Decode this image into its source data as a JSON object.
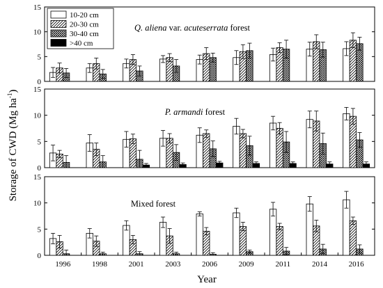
{
  "chart_data": {
    "type": "bar",
    "xlabel": "Year",
    "ylabel": "Storage of CWD (Mg ha",
    "ylabel_sup": "-1",
    "ylabel_close": ")",
    "categories": [
      "1996",
      "1998",
      "2001",
      "2003",
      "2006",
      "2009",
      "2011",
      "2014",
      "2016"
    ],
    "ylim": [
      0,
      15
    ],
    "yticks": [
      "0",
      "5",
      "10",
      "15"
    ],
    "grid": false,
    "legend": {
      "placement": "top-left",
      "entries": [
        {
          "label": "10-20 cm",
          "pattern": "blank"
        },
        {
          "label": "20-30 cm",
          "pattern": "diagonal"
        },
        {
          "label": "30-40 cm",
          "pattern": "crosshatch"
        },
        {
          "label": ">40 cm",
          "pattern": "solid"
        }
      ]
    },
    "panels": [
      {
        "title_parts": [
          {
            "text": "Q. aliena",
            "italic": true
          },
          {
            "text": " var. ",
            "italic": false
          },
          {
            "text": "acuteserrata",
            "italic": true
          },
          {
            "text": " forest",
            "italic": false
          }
        ],
        "series": [
          {
            "name": "10-20 cm",
            "values": [
              1.8,
              2.7,
              3.6,
              4.5,
              4.4,
              4.8,
              5.4,
              6.5,
              6.6
            ],
            "errors": [
              1.0,
              0.9,
              0.9,
              0.7,
              0.9,
              1.4,
              1.3,
              1.4,
              1.4
            ]
          },
          {
            "name": "20-30 cm",
            "values": [
              2.7,
              3.6,
              4.4,
              4.8,
              5.6,
              6.0,
              6.8,
              8.0,
              8.3
            ],
            "errors": [
              1.0,
              1.1,
              1.0,
              0.8,
              1.2,
              1.4,
              1.0,
              1.4,
              1.5
            ]
          },
          {
            "name": "30-40 cm",
            "values": [
              1.7,
              1.5,
              2.1,
              3.1,
              4.8,
              6.2,
              6.5,
              6.4,
              7.6
            ],
            "errors": [
              0.9,
              0.9,
              1.0,
              1.3,
              0.9,
              1.5,
              1.8,
              1.5,
              1.3
            ]
          },
          {
            "name": ">40 cm",
            "values": [
              0,
              0,
              0,
              0,
              0,
              0,
              0,
              0,
              0
            ],
            "errors": [
              0,
              0,
              0,
              0,
              0,
              0,
              0,
              0,
              0
            ]
          }
        ]
      },
      {
        "title_parts": [
          {
            "text": "P. armandi",
            "italic": true
          },
          {
            "text": " forest",
            "italic": false
          }
        ],
        "series": [
          {
            "name": "10-20 cm",
            "values": [
              2.8,
              4.7,
              5.4,
              5.6,
              6.2,
              7.9,
              8.5,
              9.2,
              10.3
            ],
            "errors": [
              1.5,
              1.6,
              1.5,
              1.5,
              1.4,
              1.5,
              1.3,
              1.6,
              1.2
            ]
          },
          {
            "name": "20-30 cm",
            "values": [
              2.6,
              3.5,
              5.5,
              5.6,
              6.5,
              6.5,
              7.5,
              8.9,
              9.8
            ],
            "errors": [
              0.7,
              1.2,
              0.9,
              0.9,
              0.7,
              0.8,
              1.1,
              1.9,
              1.5
            ]
          },
          {
            "name": "30-40 cm",
            "values": [
              1.0,
              1.1,
              1.6,
              2.9,
              3.6,
              4.2,
              4.9,
              4.6,
              5.3
            ],
            "errors": [
              1.3,
              1.2,
              1.7,
              1.5,
              1.5,
              1.8,
              2.0,
              2.0,
              1.4
            ]
          },
          {
            "name": ">40 cm",
            "values": [
              0,
              0,
              0.5,
              0.6,
              0.9,
              0.8,
              0.8,
              0.7,
              0.7
            ],
            "errors": [
              0,
              0,
              0.3,
              0.3,
              0.3,
              0.3,
              0.3,
              0.4,
              0.4
            ]
          }
        ]
      },
      {
        "title_parts": [
          {
            "text": "Mixed forest",
            "italic": false
          }
        ],
        "series": [
          {
            "name": "10-20 cm",
            "values": [
              3.2,
              4.2,
              5.7,
              6.3,
              7.9,
              8.1,
              8.8,
              9.8,
              10.6
            ],
            "errors": [
              1.0,
              0.9,
              0.9,
              1.0,
              0.4,
              0.9,
              1.3,
              1.4,
              1.6
            ]
          },
          {
            "name": "20-30 cm",
            "values": [
              2.6,
              2.7,
              3.0,
              3.7,
              4.6,
              5.5,
              5.5,
              5.6,
              6.6
            ],
            "errors": [
              1.2,
              1.0,
              0.8,
              1.4,
              0.7,
              0.8,
              0.6,
              1.1,
              0.7
            ]
          },
          {
            "name": "30-40 cm",
            "values": [
              0.3,
              0.3,
              0.3,
              0.3,
              0.2,
              0.7,
              0.8,
              1.2,
              1.2
            ],
            "errors": [
              0.7,
              0.3,
              0.4,
              0.3,
              0.3,
              0.3,
              0.7,
              0.9,
              0.8
            ]
          },
          {
            "name": ">40 cm",
            "values": [
              0,
              0,
              0,
              0,
              0,
              0,
              0,
              0,
              0
            ],
            "errors": [
              0,
              0,
              0,
              0,
              0,
              0,
              0,
              0,
              0
            ]
          }
        ]
      }
    ]
  }
}
